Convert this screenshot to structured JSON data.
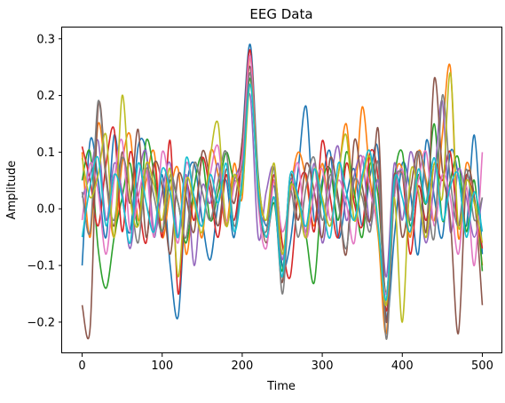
{
  "chart_data": {
    "type": "line",
    "title": "EEG Data",
    "xlabel": "Time",
    "ylabel": "Amplitude",
    "xlim": [
      -25,
      525
    ],
    "ylim": [
      -0.255,
      0.32
    ],
    "xticks": [
      0,
      100,
      200,
      300,
      400,
      500
    ],
    "yticks": [
      -0.2,
      -0.1,
      0.0,
      0.1,
      0.2,
      0.3
    ],
    "ytick_labels": [
      "−0.2",
      "−0.1",
      "0.0",
      "0.1",
      "0.2",
      "0.3"
    ],
    "grid": false,
    "legend": "none",
    "colors": [
      "#1f77b4",
      "#ff7f0e",
      "#2ca02c",
      "#d62728",
      "#9467bd",
      "#8c564b",
      "#e377c2",
      "#7f7f7f",
      "#bcbd22",
      "#17becf"
    ],
    "x": [
      0,
      10,
      20,
      30,
      40,
      50,
      60,
      70,
      80,
      90,
      100,
      110,
      120,
      130,
      140,
      150,
      160,
      170,
      180,
      190,
      200,
      210,
      220,
      230,
      240,
      250,
      260,
      270,
      280,
      290,
      300,
      310,
      320,
      330,
      340,
      350,
      360,
      370,
      380,
      390,
      400,
      410,
      420,
      430,
      440,
      450,
      460,
      470,
      480,
      490,
      500
    ],
    "series": [
      {
        "values": [
          -0.1,
          0.12,
          0.05,
          -0.05,
          0.13,
          0.02,
          -0.04,
          0.11,
          0.1,
          -0.05,
          0.06,
          -0.1,
          -0.19,
          0.03,
          0.08,
          -0.02,
          -0.09,
          0.01,
          0.05,
          -0.05,
          0.12,
          0.29,
          0.06,
          -0.03,
          0.04,
          -0.1,
          -0.06,
          0.07,
          0.18,
          -0.02,
          0.05,
          0.1,
          -0.05,
          0.02,
          0.07,
          -0.03,
          0.06,
          0.1,
          -0.19,
          -0.05,
          0.08,
          0.03,
          -0.08,
          0.12,
          0.02,
          -0.05,
          0.1,
          0.06,
          -0.03,
          0.13,
          -0.08
        ]
      },
      {
        "values": [
          0.1,
          -0.05,
          0.15,
          0.05,
          -0.05,
          0.08,
          0.13,
          -0.02,
          0.05,
          0.1,
          -0.05,
          0.03,
          0.07,
          -0.08,
          0.02,
          -0.05,
          0.1,
          0.06,
          -0.03,
          0.08,
          0.02,
          0.27,
          0.04,
          -0.02,
          0.05,
          -0.08,
          0.03,
          0.1,
          0.05,
          -0.03,
          0.08,
          -0.02,
          0.06,
          0.15,
          0.02,
          0.18,
          0.05,
          -0.05,
          -0.22,
          0.04,
          0.07,
          -0.05,
          0.1,
          0.05,
          -0.02,
          0.13,
          0.25,
          -0.05,
          0.08,
          0.02,
          -0.1
        ]
      },
      {
        "values": [
          0.05,
          0.1,
          -0.07,
          -0.14,
          -0.05,
          0.02,
          0.08,
          -0.03,
          0.12,
          0.06,
          -0.04,
          0.05,
          0.01,
          -0.06,
          0.04,
          0.09,
          -0.02,
          0.03,
          0.1,
          0.05,
          0.08,
          0.23,
          0.03,
          -0.05,
          0.01,
          -0.11,
          0.04,
          0.02,
          -0.05,
          -0.13,
          0.04,
          0.07,
          -0.02,
          0.1,
          0.03,
          -0.05,
          0.08,
          0.02,
          -0.15,
          0.05,
          0.1,
          -0.03,
          0.06,
          0.01,
          0.15,
          -0.02,
          0.05,
          0.09,
          -0.04,
          0.05,
          -0.11
        ]
      },
      {
        "values": [
          0.11,
          0.05,
          -0.03,
          0.08,
          0.14,
          -0.04,
          0.1,
          0.02,
          -0.06,
          0.08,
          -0.05,
          0.12,
          -0.15,
          0.04,
          -0.02,
          0.09,
          0.03,
          -0.05,
          0.06,
          -0.02,
          0.1,
          0.28,
          0.02,
          -0.04,
          0.06,
          -0.06,
          -0.12,
          0.03,
          0.06,
          -0.04,
          0.12,
          0.02,
          -0.05,
          0.08,
          0.01,
          -0.03,
          0.1,
          0.05,
          -0.18,
          0.02,
          0.06,
          -0.08,
          0.04,
          -0.02,
          0.08,
          0.05,
          0.1,
          -0.03,
          0.06,
          0.01,
          -0.07
        ]
      },
      {
        "values": [
          0.02,
          0.06,
          0.12,
          -0.02,
          0.08,
          0.03,
          -0.07,
          0.05,
          0.1,
          -0.04,
          0.03,
          0.08,
          -0.05,
          0.06,
          -0.1,
          0.04,
          0.01,
          0.08,
          -0.03,
          0.05,
          0.09,
          0.2,
          -0.05,
          0.03,
          0.07,
          -0.09,
          0.05,
          0.01,
          -0.04,
          0.08,
          -0.06,
          0.04,
          0.11,
          -0.02,
          0.06,
          0.09,
          -0.03,
          0.05,
          -0.12,
          0.08,
          -0.02,
          0.1,
          0.03,
          -0.06,
          0.05,
          0.19,
          -0.04,
          0.07,
          0.02,
          -0.05,
          0.02
        ]
      },
      {
        "values": [
          -0.17,
          -0.21,
          0.18,
          0.06,
          -0.03,
          0.1,
          0.01,
          0.14,
          -0.05,
          0.08,
          0.04,
          -0.08,
          0.06,
          0.02,
          -0.04,
          0.1,
          0.05,
          -0.03,
          0.07,
          0.01,
          0.12,
          0.25,
          0.03,
          -0.06,
          0.02,
          -0.13,
          0.06,
          -0.02,
          0.08,
          0.03,
          -0.05,
          0.09,
          0.02,
          -0.08,
          0.12,
          0.04,
          -0.02,
          0.14,
          -0.2,
          0.06,
          -0.05,
          0.03,
          0.1,
          -0.04,
          0.23,
          0.07,
          -0.02,
          -0.22,
          0.05,
          0.02,
          -0.17
        ]
      },
      {
        "values": [
          -0.02,
          0.08,
          0.03,
          -0.08,
          0.05,
          0.12,
          -0.04,
          0.02,
          0.07,
          -0.05,
          0.1,
          0.03,
          -0.06,
          0.08,
          0.02,
          -0.03,
          0.06,
          0.11,
          -0.02,
          0.04,
          0.09,
          0.27,
          0.01,
          -0.07,
          0.05,
          -0.04,
          0.02,
          0.08,
          -0.05,
          0.03,
          0.07,
          -0.02,
          0.05,
          0.01,
          -0.06,
          0.09,
          0.03,
          -0.04,
          -0.15,
          0.02,
          0.07,
          -0.02,
          0.05,
          0.1,
          -0.03,
          0.06,
          0.02,
          -0.08,
          0.04,
          -0.1,
          0.1
        ]
      },
      {
        "values": [
          0.03,
          -0.04,
          0.19,
          0.05,
          -0.02,
          0.09,
          0.03,
          -0.06,
          0.07,
          0.02,
          -0.04,
          0.06,
          0.01,
          -0.05,
          0.08,
          0.03,
          -0.02,
          0.05,
          0.1,
          -0.03,
          0.06,
          0.24,
          0.02,
          -0.04,
          0.07,
          -0.15,
          0.03,
          -0.05,
          0.04,
          0.09,
          -0.02,
          0.06,
          0.01,
          -0.07,
          0.05,
          0.02,
          -0.04,
          0.08,
          -0.23,
          0.03,
          0.06,
          -0.02,
          0.1,
          0.04,
          -0.05,
          0.2,
          0.05,
          -0.03,
          0.07,
          -0.02,
          0.02
        ]
      },
      {
        "values": [
          0.09,
          0.02,
          0.06,
          0.13,
          -0.05,
          0.2,
          0.02,
          -0.03,
          0.08,
          0.04,
          -0.02,
          0.07,
          -0.12,
          0.05,
          0.01,
          -0.04,
          0.09,
          0.15,
          -0.03,
          0.06,
          0.03,
          0.22,
          0.05,
          -0.02,
          0.08,
          -0.08,
          0.04,
          0.01,
          -0.05,
          0.07,
          0.02,
          -0.03,
          0.06,
          0.13,
          -0.02,
          0.05,
          0.09,
          -0.04,
          -0.17,
          0.02,
          -0.2,
          0.06,
          0.03,
          -0.05,
          0.08,
          0.02,
          0.24,
          -0.03,
          0.05,
          0.01,
          -0.06
        ]
      },
      {
        "values": [
          -0.05,
          0.04,
          0.09,
          -0.03,
          0.06,
          0.02,
          -0.06,
          0.08,
          0.01,
          -0.04,
          0.07,
          0.03,
          -0.05,
          0.09,
          0.02,
          -0.03,
          0.06,
          0.01,
          0.08,
          -0.04,
          0.05,
          0.22,
          0.03,
          -0.05,
          0.02,
          -0.12,
          0.06,
          0.02,
          -0.03,
          0.07,
          0.01,
          -0.05,
          0.08,
          0.03,
          -0.02,
          0.06,
          0.1,
          -0.03,
          -0.16,
          0.05,
          0.02,
          -0.04,
          0.07,
          0.01,
          0.09,
          -0.02,
          0.04,
          0.06,
          -0.05,
          0.03,
          -0.04
        ]
      }
    ]
  }
}
